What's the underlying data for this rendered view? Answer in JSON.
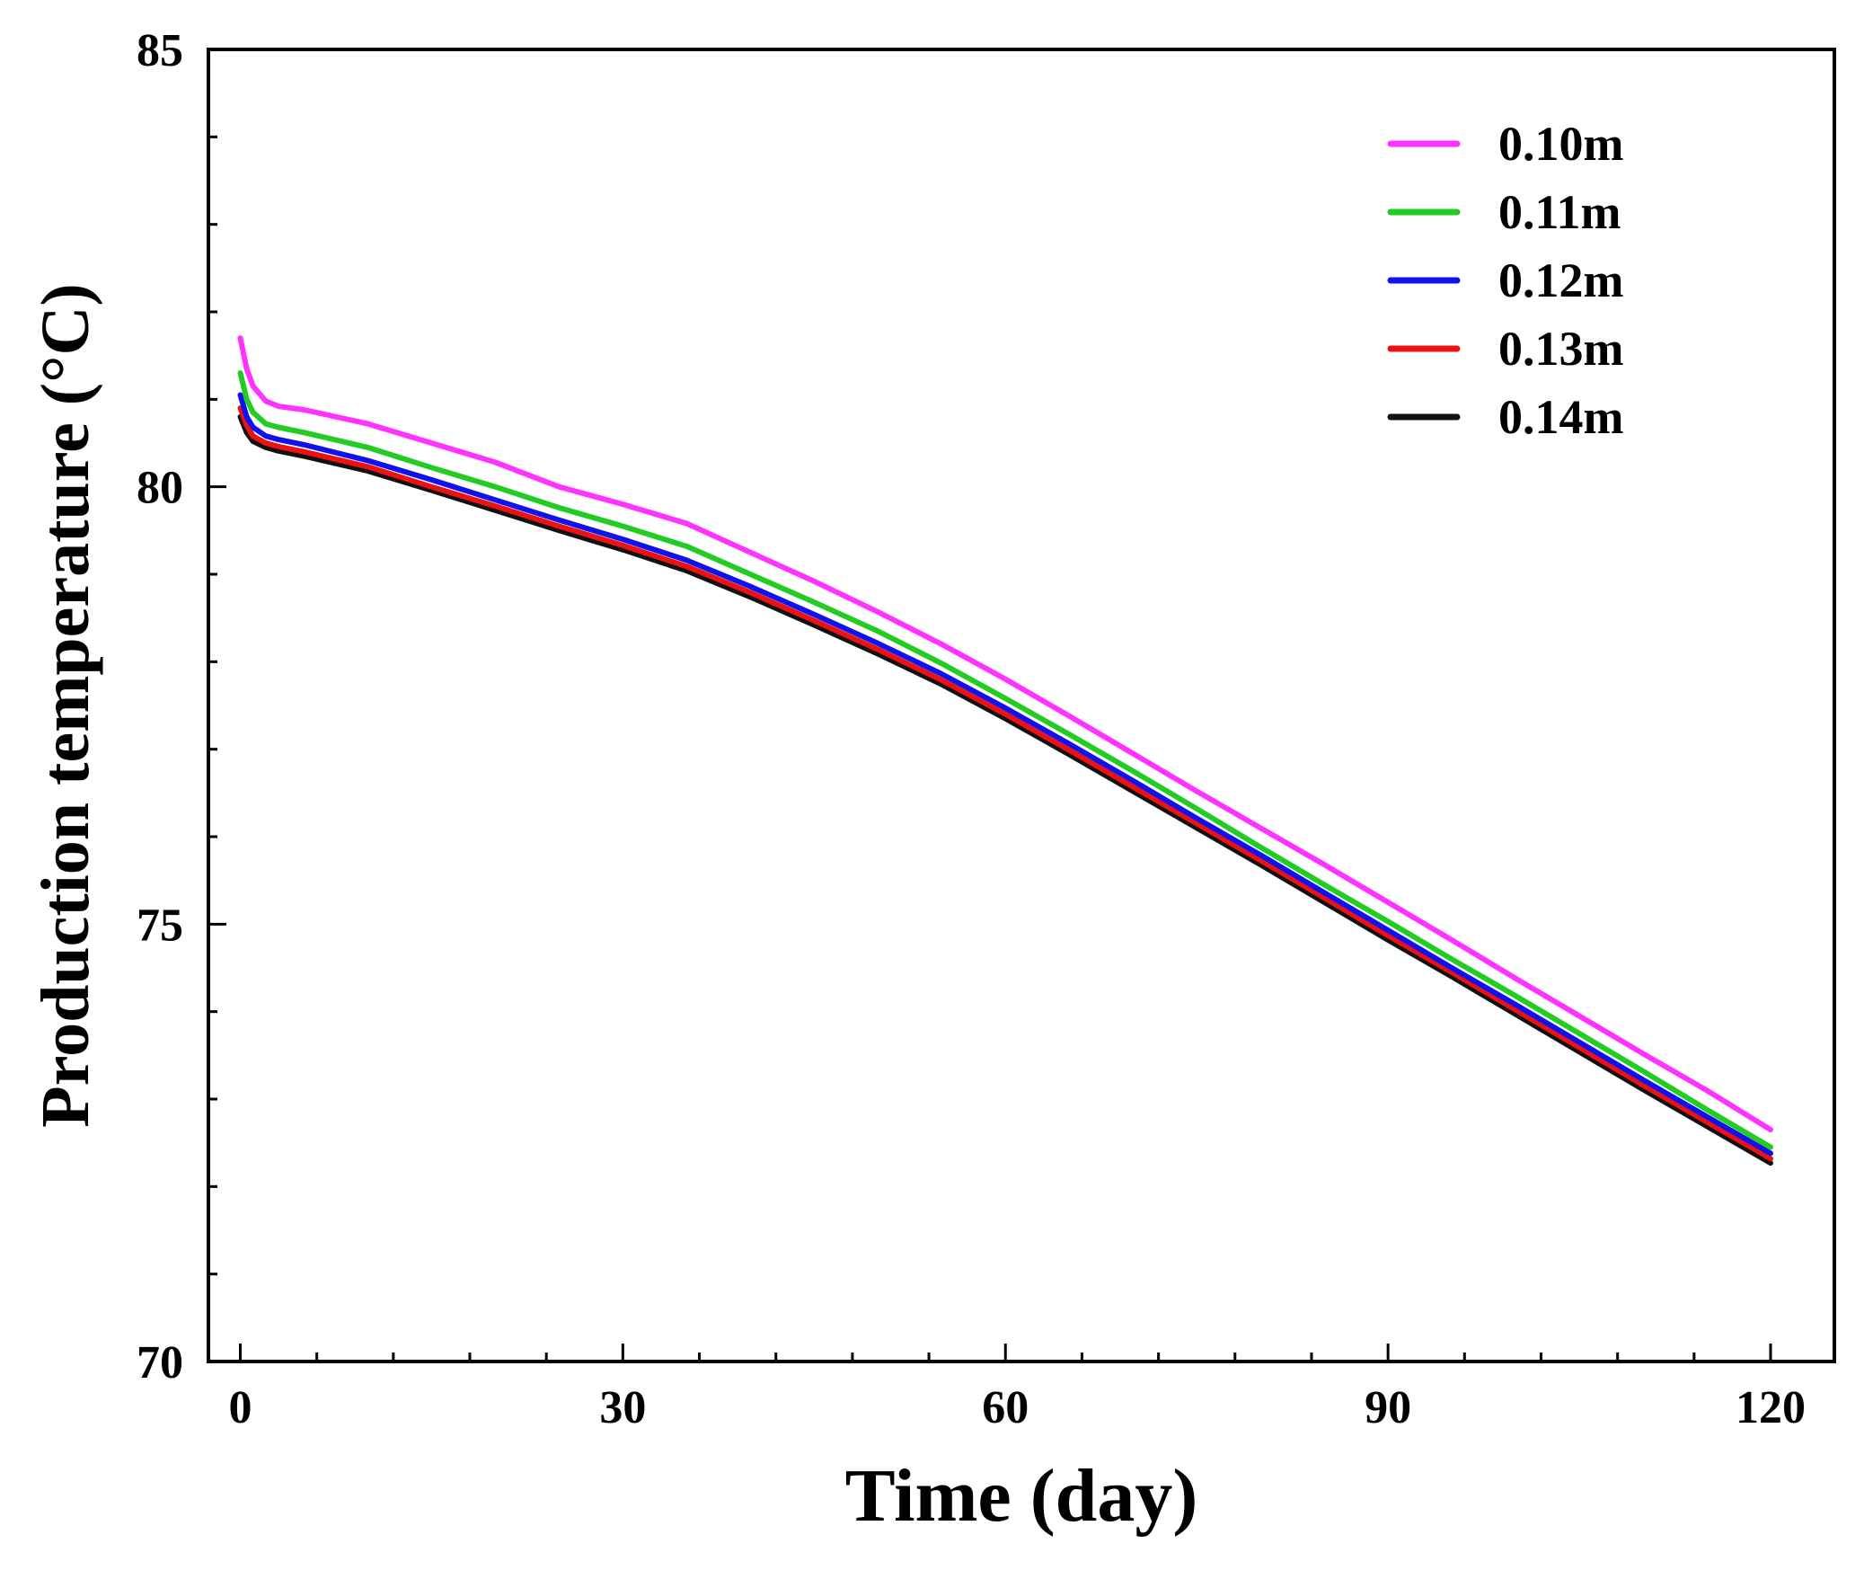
{
  "chart_data": {
    "type": "line",
    "title": "",
    "xlabel": "Time (day)",
    "ylabel": "Production temperature (°C)",
    "xlim": [
      -2.5,
      125
    ],
    "ylim": [
      70,
      85
    ],
    "xticks": [
      0,
      30,
      60,
      90,
      120
    ],
    "xtick_labels": [
      "0",
      "30",
      "60",
      "90",
      "120"
    ],
    "yticks": [
      70,
      75,
      80,
      85
    ],
    "ytick_labels": [
      "70",
      "75",
      "80",
      "85"
    ],
    "x_minor_step": 6,
    "y_minor_step": 1,
    "grid": false,
    "legend_position": "top-right",
    "x": [
      0,
      0.5,
      1,
      2,
      3,
      5,
      10,
      15,
      20,
      25,
      30,
      35,
      40,
      45,
      50,
      55,
      60,
      65,
      70,
      75,
      80,
      85,
      90,
      95,
      100,
      105,
      110,
      115,
      120
    ],
    "series": [
      {
        "name": "0.10m",
        "color": "#ff33ff",
        "values": [
          81.7,
          81.35,
          81.15,
          80.98,
          80.92,
          80.88,
          80.72,
          80.5,
          80.28,
          80.0,
          79.8,
          79.58,
          79.25,
          78.92,
          78.57,
          78.2,
          77.8,
          77.38,
          76.95,
          76.52,
          76.1,
          75.68,
          75.25,
          74.82,
          74.38,
          73.95,
          73.52,
          73.1,
          72.65
        ]
      },
      {
        "name": "0.11m",
        "color": "#22cc22",
        "values": [
          81.3,
          81.0,
          80.85,
          80.72,
          80.68,
          80.62,
          80.45,
          80.22,
          80.0,
          79.76,
          79.55,
          79.32,
          79.0,
          78.68,
          78.35,
          77.98,
          77.58,
          77.17,
          76.75,
          76.32,
          75.88,
          75.45,
          75.03,
          74.6,
          74.18,
          73.75,
          73.32,
          72.88,
          72.45
        ]
      },
      {
        "name": "0.12m",
        "color": "#1111ee",
        "values": [
          81.05,
          80.8,
          80.68,
          80.58,
          80.54,
          80.48,
          80.3,
          80.08,
          79.85,
          79.62,
          79.4,
          79.16,
          78.86,
          78.54,
          78.21,
          77.86,
          77.47,
          77.06,
          76.64,
          76.21,
          75.79,
          75.36,
          74.93,
          74.5,
          74.08,
          73.65,
          73.22,
          72.8,
          72.38
        ]
      },
      {
        "name": "0.13m",
        "color": "#ee1111",
        "values": [
          80.9,
          80.7,
          80.58,
          80.5,
          80.46,
          80.4,
          80.23,
          80.0,
          79.78,
          79.55,
          79.33,
          79.09,
          78.79,
          78.47,
          78.14,
          77.79,
          77.4,
          76.99,
          76.57,
          76.15,
          75.73,
          75.3,
          74.87,
          74.45,
          74.02,
          73.59,
          73.16,
          72.74,
          72.32
        ]
      },
      {
        "name": "0.14m",
        "color": "#111111",
        "values": [
          80.8,
          80.62,
          80.52,
          80.45,
          80.41,
          80.35,
          80.18,
          79.96,
          79.73,
          79.5,
          79.28,
          79.04,
          78.74,
          78.42,
          78.09,
          77.74,
          77.35,
          76.94,
          76.52,
          76.1,
          75.68,
          75.25,
          74.82,
          74.4,
          73.97,
          73.54,
          73.11,
          72.69,
          72.27
        ]
      }
    ]
  }
}
